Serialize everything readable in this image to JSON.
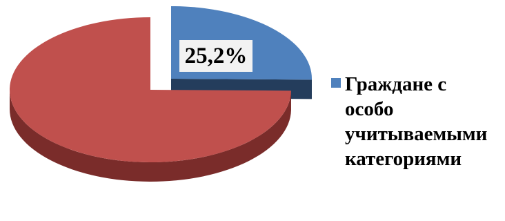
{
  "chart_data": {
    "type": "pie",
    "slices": [
      {
        "value": 25.2,
        "color": "#4f81bd",
        "side_color": "#243d5c",
        "label": "25,2%"
      },
      {
        "value": 74.8,
        "color": "#c0504d",
        "side_color": "#7a2c2a",
        "label": ""
      }
    ],
    "legend": {
      "position": "right",
      "entries": [
        {
          "text": "Граждане с\nособо\nучитываемыми\nкатегориями",
          "color": "#4f81bd"
        }
      ]
    },
    "exploded_slice": 0,
    "style": "3d"
  }
}
